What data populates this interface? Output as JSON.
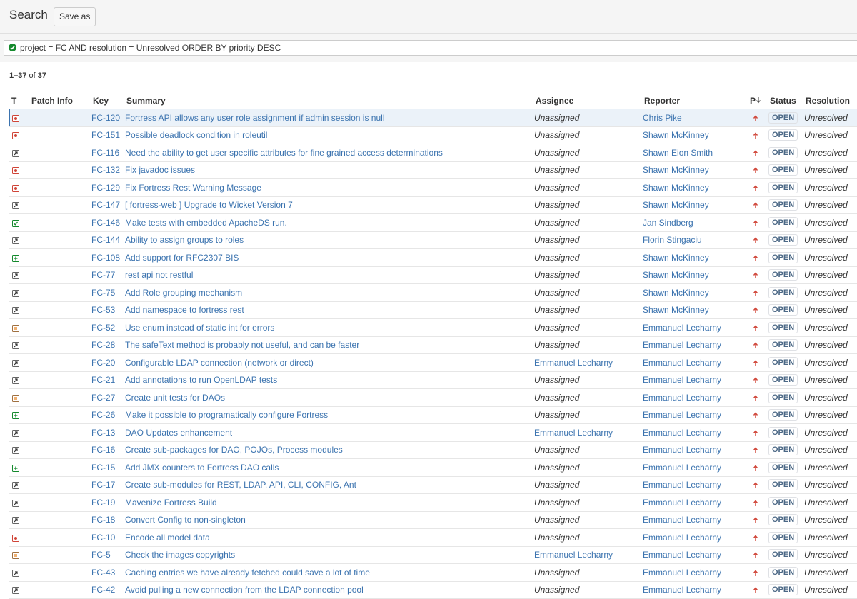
{
  "header": {
    "title": "Search",
    "save_button": "Save as"
  },
  "query": "project = FC AND resolution = Unresolved ORDER BY priority DESC",
  "results": {
    "range": "1–37",
    "of": "of",
    "total": "37"
  },
  "table": {
    "columns": [
      "T",
      "Patch Info",
      "Key",
      "Summary",
      "Assignee",
      "Reporter",
      "P",
      "Status",
      "Resolution"
    ],
    "rows": [
      [
        "FC-120",
        "Fortress API allows any user role assignment if admin session is null",
        "Unassigned",
        "Chris Pike",
        "OPEN",
        "Unresolved"
      ],
      [
        "FC-151",
        "Possible deadlock condition in roleutil",
        "Unassigned",
        "Shawn McKinney",
        "OPEN",
        "Unresolved"
      ],
      [
        "FC-116",
        "Need the ability to get user specific attributes for fine grained access determinations",
        "Unassigned",
        "Shawn Eion Smith",
        "OPEN",
        "Unresolved"
      ],
      [
        "FC-132",
        "Fix javadoc issues",
        "Unassigned",
        "Shawn McKinney",
        "OPEN",
        "Unresolved"
      ],
      [
        "FC-129",
        "Fix Fortress Rest Warning Message",
        "Unassigned",
        "Shawn McKinney",
        "OPEN",
        "Unresolved"
      ],
      [
        "FC-147",
        "[ fortress-web ] Upgrade to Wicket Version 7",
        "Unassigned",
        "Shawn McKinney",
        "OPEN",
        "Unresolved"
      ],
      [
        "FC-146",
        "Make tests with embedded ApacheDS run.",
        "Unassigned",
        "Jan Sindberg",
        "OPEN",
        "Unresolved"
      ],
      [
        "FC-144",
        "Ability to assign groups to roles",
        "Unassigned",
        "Florin Stingaciu",
        "OPEN",
        "Unresolved"
      ],
      [
        "FC-108",
        "Add support for RFC2307 BIS",
        "Unassigned",
        "Shawn McKinney",
        "OPEN",
        "Unresolved"
      ],
      [
        "FC-77",
        "rest api not restful",
        "Unassigned",
        "Shawn McKinney",
        "OPEN",
        "Unresolved"
      ],
      [
        "FC-75",
        "Add Role grouping mechanism",
        "Unassigned",
        "Shawn McKinney",
        "OPEN",
        "Unresolved"
      ],
      [
        "FC-53",
        "Add namespace to fortress rest",
        "Unassigned",
        "Shawn McKinney",
        "OPEN",
        "Unresolved"
      ],
      [
        "FC-52",
        "Use enum instead of static int for errors",
        "Unassigned",
        "Emmanuel Lecharny",
        "OPEN",
        "Unresolved"
      ],
      [
        "FC-28",
        "The safeText method is probably not useful, and can be faster",
        "Unassigned",
        "Emmanuel Lecharny",
        "OPEN",
        "Unresolved"
      ],
      [
        "FC-20",
        "Configurable LDAP connection (network or direct)",
        "Emmanuel Lecharny",
        "Emmanuel Lecharny",
        "OPEN",
        "Unresolved"
      ],
      [
        "FC-21",
        "Add annotations to run OpenLDAP tests",
        "Unassigned",
        "Emmanuel Lecharny",
        "OPEN",
        "Unresolved"
      ],
      [
        "FC-27",
        "Create unit tests for DAOs",
        "Unassigned",
        "Emmanuel Lecharny",
        "OPEN",
        "Unresolved"
      ],
      [
        "FC-26",
        "Make it possible to programatically configure Fortress",
        "Unassigned",
        "Emmanuel Lecharny",
        "OPEN",
        "Unresolved"
      ],
      [
        "FC-13",
        "DAO Updates enhancement",
        "Emmanuel Lecharny",
        "Emmanuel Lecharny",
        "OPEN",
        "Unresolved"
      ],
      [
        "FC-16",
        "Create sub-packages for DAO, POJOs, Process modules",
        "Unassigned",
        "Emmanuel Lecharny",
        "OPEN",
        "Unresolved"
      ],
      [
        "FC-15",
        "Add JMX counters to Fortress DAO calls",
        "Unassigned",
        "Emmanuel Lecharny",
        "OPEN",
        "Unresolved"
      ],
      [
        "FC-17",
        "Create sub-modules for REST, LDAP, API, CLI, CONFIG, Ant",
        "Unassigned",
        "Emmanuel Lecharny",
        "OPEN",
        "Unresolved"
      ],
      [
        "FC-19",
        "Mavenize Fortress Build",
        "Unassigned",
        "Emmanuel Lecharny",
        "OPEN",
        "Unresolved"
      ],
      [
        "FC-18",
        "Convert Config to non-singleton",
        "Unassigned",
        "Emmanuel Lecharny",
        "OPEN",
        "Unresolved"
      ],
      [
        "FC-10",
        "Encode all model data",
        "Unassigned",
        "Emmanuel Lecharny",
        "OPEN",
        "Unresolved"
      ],
      [
        "FC-5",
        "Check the images copyrights",
        "Emmanuel Lecharny",
        "Emmanuel Lecharny",
        "OPEN",
        "Unresolved"
      ],
      [
        "FC-43",
        "Caching entries we have already fetched could save a lot of time",
        "Unassigned",
        "Emmanuel Lecharny",
        "OPEN",
        "Unresolved"
      ],
      [
        "FC-42",
        "Avoid pulling a new connection from the LDAP connection pool",
        "Unassigned",
        "Emmanuel Lecharny",
        "OPEN",
        "Unresolved"
      ]
    ]
  }
}
